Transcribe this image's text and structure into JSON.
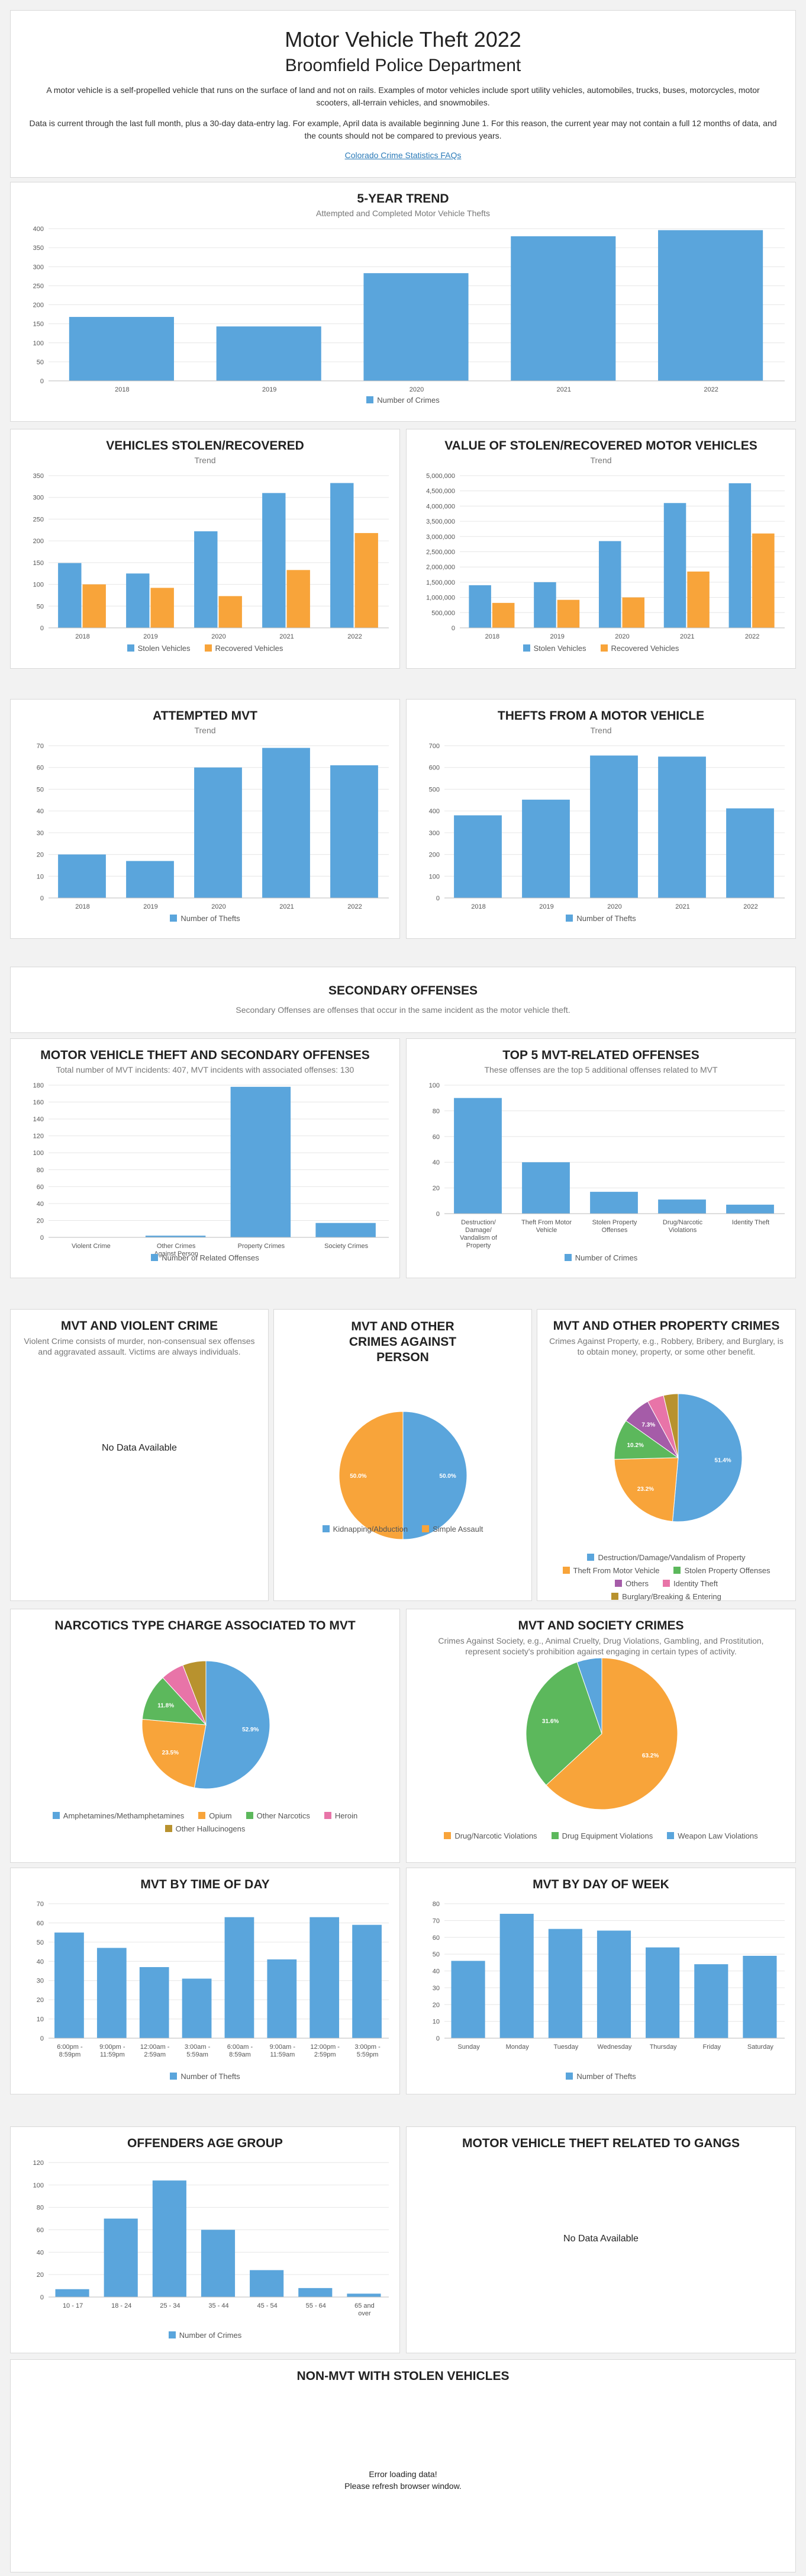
{
  "header": {
    "title": "Motor Vehicle Theft 2022",
    "subtitle": "Broomfield Police Department",
    "description": "A motor vehicle is a self-propelled vehicle that runs on the surface of land and not on rails. Examples of motor vehicles include sport utility vehicles, automobiles, trucks, buses, motorcycles, motor scooters, all-terrain vehicles, and snowmobiles.",
    "data_note": "Data is current through the last full month, plus a 30-day data-entry lag. For example, April data is available beginning June 1. For this reason, the current year may not contain a full 12 months of data, and the counts should not be compared to previous years.",
    "link_label": "Colorado Crime Statistics FAQs"
  },
  "colors": {
    "blue": "#5aa5dc",
    "orange": "#f8a43a",
    "green": "#5cb85c",
    "pink": "#e874a8",
    "purple": "#a55ca8",
    "gold": "#b8922e",
    "gray": "#666666"
  },
  "secondary": {
    "title": "SECONDARY OFFENSES",
    "subtitle": "Secondary Offenses are offenses that occur in the same incident as the motor vehicle theft."
  },
  "no_data_label": "No Data Available",
  "error_lines": [
    "Error loading data!",
    "Please refresh browser window."
  ],
  "panels": {
    "trend": {
      "title": "5-YEAR TREND",
      "subtitle": "Attempted and Completed Motor Vehicle Thefts"
    },
    "vehicles": {
      "title": "VEHICLES STOLEN/RECOVERED",
      "subtitle": "Trend"
    },
    "value": {
      "title": "VALUE OF STOLEN/RECOVERED MOTOR VEHICLES",
      "subtitle": "Trend"
    },
    "attempted": {
      "title": "ATTEMPTED MVT",
      "subtitle": "Trend"
    },
    "thefts_from": {
      "title": "THEFTS FROM A MOTOR VEHICLE",
      "subtitle": "Trend"
    },
    "mvt_secondary": {
      "title": "MOTOR VEHICLE THEFT AND SECONDARY OFFENSES",
      "subtitle": "Total number of MVT incidents: 407, MVT incidents with associated offenses: 130"
    },
    "top5": {
      "title": "TOP 5 MVT-RELATED OFFENSES",
      "subtitle": "These offenses are the top 5 additional offenses related to MVT"
    },
    "violent": {
      "title": "MVT AND VIOLENT CRIME",
      "subtitle": "Violent Crime consists of murder, non-consensual sex offenses and aggravated assault. Victims are always individuals."
    },
    "person": {
      "title": "MVT AND OTHER CRIMES AGAINST PERSON",
      "subtitle": ""
    },
    "property": {
      "title": "MVT AND OTHER PROPERTY CRIMES",
      "subtitle": "Crimes Against Property, e.g., Robbery, Bribery, and Burglary, is to obtain money, property, or some other benefit."
    },
    "narcotics": {
      "title": "NARCOTICS TYPE CHARGE ASSOCIATED TO MVT",
      "subtitle": ""
    },
    "society": {
      "title": "MVT AND SOCIETY CRIMES",
      "subtitle": "Crimes Against Society, e.g., Animal Cruelty, Drug Violations, Gambling, and Prostitution, represent society's prohibition against engaging in certain types of activity."
    },
    "time_of_day": {
      "title": "MVT BY TIME OF DAY",
      "subtitle": ""
    },
    "day_of_week": {
      "title": "MVT BY DAY OF WEEK",
      "subtitle": ""
    },
    "age": {
      "title": "OFFENDERS AGE GROUP",
      "subtitle": ""
    },
    "gangs": {
      "title": "MOTOR VEHICLE THEFT RELATED TO GANGS",
      "subtitle": ""
    },
    "non_mvt": {
      "title": "NON-MVT WITH STOLEN VEHICLES",
      "subtitle": ""
    }
  },
  "chart_data": [
    {
      "id": "trend",
      "type": "bar",
      "categories": [
        "2018",
        "2019",
        "2020",
        "2021",
        "2022"
      ],
      "series": [
        {
          "name": "Number of Crimes",
          "values": [
            168,
            143,
            283,
            380,
            396
          ],
          "color": "#5aa5dc"
        }
      ],
      "yticks": [
        0,
        50,
        100,
        150,
        200,
        250,
        300,
        350,
        400
      ]
    },
    {
      "id": "vehicles",
      "type": "bar",
      "categories": [
        "2018",
        "2019",
        "2020",
        "2021",
        "2022"
      ],
      "series": [
        {
          "name": "Stolen Vehicles",
          "values": [
            149,
            125,
            222,
            310,
            333
          ],
          "color": "#5aa5dc"
        },
        {
          "name": "Recovered Vehicles",
          "values": [
            100,
            92,
            73,
            133,
            218
          ],
          "color": "#f8a43a"
        }
      ],
      "yticks": [
        0,
        50,
        100,
        150,
        200,
        250,
        300,
        350
      ]
    },
    {
      "id": "value",
      "type": "bar",
      "categories": [
        "2018",
        "2019",
        "2020",
        "2021",
        "2022"
      ],
      "series": [
        {
          "name": "Stolen Vehicles",
          "values": [
            1400000,
            1500000,
            2850000,
            4100000,
            4750000
          ],
          "color": "#5aa5dc"
        },
        {
          "name": "Recovered Vehicles",
          "values": [
            820000,
            920000,
            1000000,
            1850000,
            3100000
          ],
          "color": "#f8a43a"
        }
      ],
      "yticks": [
        0,
        500000,
        1000000,
        1500000,
        2000000,
        2500000,
        3000000,
        3500000,
        4000000,
        4500000,
        5000000
      ]
    },
    {
      "id": "attempted",
      "type": "bar",
      "categories": [
        "2018",
        "2019",
        "2020",
        "2021",
        "2022"
      ],
      "series": [
        {
          "name": "Number of Thefts",
          "values": [
            20,
            17,
            60,
            69,
            61
          ],
          "color": "#5aa5dc"
        }
      ],
      "yticks": [
        0,
        10,
        20,
        30,
        40,
        50,
        60,
        70
      ]
    },
    {
      "id": "thefts_from",
      "type": "bar",
      "categories": [
        "2018",
        "2019",
        "2020",
        "2021",
        "2022"
      ],
      "series": [
        {
          "name": "Number of Thefts",
          "values": [
            380,
            452,
            655,
            650,
            412
          ],
          "color": "#5aa5dc"
        }
      ],
      "yticks": [
        0,
        100,
        200,
        300,
        400,
        500,
        600,
        700
      ]
    },
    {
      "id": "mvt_secondary",
      "type": "bar",
      "categories": [
        "Violent Crime",
        "Other Crimes Against Person",
        "Property Crimes",
        "Society Crimes"
      ],
      "series": [
        {
          "name": "Number of Related Offenses",
          "values": [
            0,
            2,
            178,
            17
          ],
          "color": "#5aa5dc"
        }
      ],
      "yticks": [
        0,
        20,
        40,
        60,
        80,
        100,
        120,
        140,
        160,
        180
      ]
    },
    {
      "id": "top5",
      "type": "bar",
      "categories": [
        "Destruction/ Damage/ Vandalism of Property",
        "Theft From Motor Vehicle",
        "Stolen Property Offenses",
        "Drug/Narcotic Violations",
        "Identity Theft"
      ],
      "series": [
        {
          "name": "Number of Crimes",
          "values": [
            90,
            40,
            17,
            11,
            7
          ],
          "color": "#5aa5dc"
        }
      ],
      "yticks": [
        0,
        20,
        40,
        60,
        80,
        100
      ]
    },
    {
      "id": "person",
      "type": "pie",
      "slices": [
        {
          "label": "Kidnapping/Abduction",
          "value": 50.0,
          "color": "#5aa5dc"
        },
        {
          "label": "Simple Assault",
          "value": 50.0,
          "color": "#f8a43a"
        }
      ]
    },
    {
      "id": "property",
      "type": "pie",
      "slices": [
        {
          "label": "Destruction/Damage/Vandalism of Property",
          "value": 51.4,
          "color": "#5aa5dc"
        },
        {
          "label": "Theft From Motor Vehicle",
          "value": 23.2,
          "color": "#f8a43a"
        },
        {
          "label": "Stolen Property Offenses",
          "value": 10.2,
          "color": "#5cb85c"
        },
        {
          "label": "Others",
          "value": 7.3,
          "color": "#a55ca8"
        },
        {
          "label": "Identity Theft",
          "value": 4.2,
          "color": "#e874a8"
        },
        {
          "label": "Burglary/Breaking & Entering",
          "value": 3.7,
          "color": "#b8922e"
        }
      ]
    },
    {
      "id": "narcotics",
      "type": "pie",
      "slices": [
        {
          "label": "Amphetamines/Methamphetamines",
          "value": 52.9,
          "color": "#5aa5dc"
        },
        {
          "label": "Opium",
          "value": 23.5,
          "color": "#f8a43a"
        },
        {
          "label": "Other Narcotics",
          "value": 11.8,
          "color": "#5cb85c"
        },
        {
          "label": "Heroin",
          "value": 5.9,
          "color": "#e874a8"
        },
        {
          "label": "Other Hallucinogens",
          "value": 5.9,
          "color": "#b8922e"
        }
      ]
    },
    {
      "id": "society",
      "type": "pie",
      "slices": [
        {
          "label": "Drug/Narcotic Violations",
          "value": 63.2,
          "color": "#f8a43a"
        },
        {
          "label": "Drug Equipment Violations",
          "value": 31.6,
          "color": "#5cb85c"
        },
        {
          "label": "Weapon Law Violations",
          "value": 5.3,
          "color": "#5aa5dc"
        }
      ]
    },
    {
      "id": "time_of_day",
      "type": "bar",
      "categories": [
        "6:00pm - 8:59pm",
        "9:00pm - 11:59pm",
        "12:00am - 2:59am",
        "3:00am - 5:59am",
        "6:00am - 8:59am",
        "9:00am - 11:59am",
        "12:00pm - 2:59pm",
        "3:00pm - 5:59pm"
      ],
      "series": [
        {
          "name": "Number of Thefts",
          "values": [
            55,
            47,
            37,
            31,
            63,
            41,
            63,
            59
          ],
          "color": "#5aa5dc"
        }
      ],
      "yticks": [
        0,
        10,
        20,
        30,
        40,
        50,
        60,
        70
      ]
    },
    {
      "id": "day_of_week",
      "type": "bar",
      "categories": [
        "Sunday",
        "Monday",
        "Tuesday",
        "Wednesday",
        "Thursday",
        "Friday",
        "Saturday"
      ],
      "series": [
        {
          "name": "Number of Thefts",
          "values": [
            46,
            74,
            65,
            64,
            54,
            44,
            49
          ],
          "color": "#5aa5dc"
        }
      ],
      "yticks": [
        0,
        10,
        20,
        30,
        40,
        50,
        60,
        70,
        80
      ]
    },
    {
      "id": "age",
      "type": "bar",
      "categories": [
        "10 - 17",
        "18 - 24",
        "25 - 34",
        "35 - 44",
        "45 - 54",
        "55 - 64",
        "65 and over"
      ],
      "series": [
        {
          "name": "Number of Crimes",
          "values": [
            7,
            70,
            104,
            60,
            24,
            8,
            3
          ],
          "color": "#5aa5dc"
        }
      ],
      "yticks": [
        0,
        20,
        40,
        60,
        80,
        100,
        120
      ]
    }
  ]
}
